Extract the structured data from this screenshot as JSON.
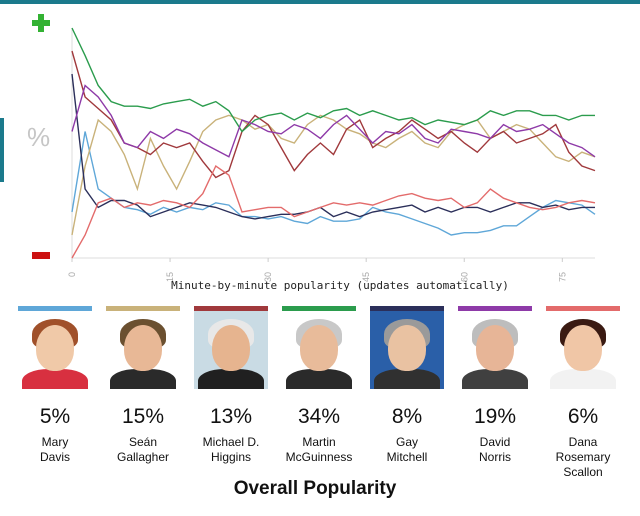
{
  "chart_data": {
    "type": "line",
    "xlabel": "Minute-by-minute popularity (updates automatically)",
    "ylabel": "%",
    "x_ticks": [
      0,
      15,
      30,
      45,
      60,
      75
    ],
    "xlim": [
      0,
      80
    ],
    "ylim": [
      0,
      100
    ],
    "grid": false,
    "series": [
      {
        "name": "Mary Davis",
        "color": "#5fa7d8",
        "x": [
          0,
          2,
          4,
          6,
          8,
          10,
          12,
          14,
          16,
          18,
          20,
          22,
          24,
          26,
          28,
          30,
          32,
          34,
          36,
          38,
          40,
          42,
          44,
          46,
          48,
          50,
          52,
          54,
          56,
          58,
          60,
          62,
          64,
          66,
          68,
          70,
          72,
          74,
          76,
          78,
          80
        ],
        "y": [
          20,
          55,
          30,
          26,
          22,
          21,
          19,
          22,
          20,
          22,
          21,
          24,
          23,
          18,
          18,
          17,
          18,
          16,
          15,
          18,
          16,
          16,
          17,
          22,
          20,
          19,
          17,
          15,
          13,
          10,
          11,
          11,
          12,
          14,
          14,
          18,
          22,
          25,
          24,
          23,
          19
        ]
      },
      {
        "name": "Seán Gallagher",
        "color": "#c9b27a",
        "x": [
          0,
          2,
          4,
          6,
          8,
          10,
          12,
          14,
          16,
          18,
          20,
          22,
          24,
          26,
          28,
          30,
          32,
          34,
          36,
          38,
          40,
          42,
          44,
          46,
          48,
          50,
          52,
          54,
          56,
          58,
          60,
          62,
          64,
          66,
          68,
          70,
          72,
          74,
          76,
          78,
          80
        ],
        "y": [
          10,
          40,
          60,
          55,
          45,
          30,
          52,
          40,
          30,
          42,
          55,
          60,
          62,
          60,
          56,
          58,
          52,
          50,
          58,
          62,
          60,
          56,
          54,
          50,
          48,
          52,
          55,
          50,
          48,
          55,
          58,
          60,
          52,
          55,
          58,
          56,
          50,
          44,
          42,
          46,
          44
        ]
      },
      {
        "name": "Michael D. Higgins",
        "color": "#a0393c",
        "x": [
          0,
          2,
          4,
          6,
          8,
          10,
          12,
          14,
          16,
          18,
          20,
          22,
          24,
          26,
          28,
          30,
          32,
          34,
          36,
          38,
          40,
          42,
          44,
          46,
          48,
          50,
          52,
          54,
          56,
          58,
          60,
          62,
          64,
          66,
          68,
          70,
          72,
          74,
          76,
          78,
          80
        ],
        "y": [
          90,
          70,
          65,
          60,
          50,
          48,
          45,
          50,
          48,
          50,
          42,
          35,
          38,
          55,
          62,
          58,
          48,
          38,
          45,
          50,
          45,
          56,
          60,
          48,
          52,
          55,
          60,
          56,
          52,
          55,
          50,
          46,
          52,
          55,
          50,
          52,
          54,
          58,
          46,
          40,
          38
        ]
      },
      {
        "name": "Martin McGuinness",
        "color": "#2b9c4d",
        "x": [
          0,
          2,
          4,
          6,
          8,
          10,
          12,
          14,
          16,
          18,
          20,
          22,
          24,
          26,
          28,
          30,
          32,
          34,
          36,
          38,
          40,
          42,
          44,
          46,
          48,
          50,
          52,
          54,
          56,
          58,
          60,
          62,
          64,
          66,
          68,
          70,
          72,
          74,
          76,
          78,
          80
        ],
        "y": [
          100,
          88,
          75,
          68,
          66,
          66,
          65,
          67,
          68,
          69,
          66,
          68,
          64,
          55,
          60,
          62,
          63,
          60,
          63,
          61,
          64,
          65,
          62,
          64,
          62,
          60,
          61,
          58,
          60,
          59,
          58,
          60,
          64,
          62,
          64,
          64,
          62,
          62,
          60,
          62,
          62
        ]
      },
      {
        "name": "Gay Mitchell",
        "color": "#2b2f5a",
        "x": [
          0,
          2,
          4,
          6,
          8,
          10,
          12,
          14,
          16,
          18,
          20,
          22,
          24,
          26,
          28,
          30,
          32,
          34,
          36,
          38,
          40,
          42,
          44,
          46,
          48,
          50,
          52,
          54,
          56,
          58,
          60,
          62,
          64,
          66,
          68,
          70,
          72,
          74,
          76,
          78,
          80
        ],
        "y": [
          80,
          30,
          22,
          25,
          25,
          23,
          18,
          20,
          22,
          24,
          23,
          22,
          20,
          18,
          17,
          18,
          19,
          19,
          20,
          22,
          18,
          20,
          18,
          20,
          21,
          22,
          23,
          20,
          22,
          20,
          22,
          22,
          20,
          22,
          24,
          24,
          22,
          23,
          21,
          22,
          22
        ]
      },
      {
        "name": "David Norris",
        "color": "#8e3aa8",
        "x": [
          0,
          2,
          4,
          6,
          8,
          10,
          12,
          14,
          16,
          18,
          20,
          22,
          24,
          26,
          28,
          30,
          32,
          34,
          36,
          38,
          40,
          42,
          44,
          46,
          48,
          50,
          52,
          54,
          56,
          58,
          60,
          62,
          64,
          66,
          68,
          70,
          72,
          74,
          76,
          78,
          80
        ],
        "y": [
          55,
          75,
          70,
          62,
          50,
          48,
          55,
          52,
          56,
          54,
          50,
          47,
          44,
          60,
          58,
          55,
          54,
          58,
          56,
          52,
          58,
          62,
          56,
          50,
          55,
          54,
          58,
          52,
          50,
          56,
          55,
          54,
          52,
          58,
          55,
          56,
          58,
          54,
          50,
          48,
          44
        ]
      },
      {
        "name": "Dana Rosemary Scallon",
        "color": "#e36b6b",
        "x": [
          0,
          2,
          4,
          6,
          8,
          10,
          12,
          14,
          16,
          18,
          20,
          22,
          24,
          26,
          28,
          30,
          32,
          34,
          36,
          38,
          40,
          42,
          44,
          46,
          48,
          50,
          52,
          54,
          56,
          58,
          60,
          62,
          64,
          66,
          68,
          70,
          72,
          74,
          76,
          78,
          80
        ],
        "y": [
          0,
          10,
          24,
          26,
          22,
          24,
          23,
          25,
          24,
          22,
          28,
          40,
          36,
          20,
          21,
          22,
          22,
          18,
          20,
          22,
          24,
          23,
          24,
          23,
          25,
          27,
          28,
          26,
          25,
          26,
          22,
          24,
          30,
          26,
          24,
          22,
          21,
          22,
          24,
          25,
          24
        ]
      }
    ]
  },
  "labels": {
    "pct_sign": "%",
    "overall": "Overall Popularity"
  },
  "candidates": [
    {
      "pct": "5%",
      "name_lines": [
        "Mary",
        "Davis"
      ],
      "color": "#5fa7d8"
    },
    {
      "pct": "15%",
      "name_lines": [
        "Seán",
        "Gallagher"
      ],
      "color": "#c9b27a"
    },
    {
      "pct": "13%",
      "name_lines": [
        "Michael D.",
        "Higgins"
      ],
      "color": "#a0393c"
    },
    {
      "pct": "34%",
      "name_lines": [
        "Martin",
        "McGuinness"
      ],
      "color": "#2b9c4d"
    },
    {
      "pct": "8%",
      "name_lines": [
        "Gay",
        "Mitchell"
      ],
      "color": "#2b2f5a"
    },
    {
      "pct": "19%",
      "name_lines": [
        "David",
        "Norris"
      ],
      "color": "#8e3aa8"
    },
    {
      "pct": "6%",
      "name_lines": [
        "Dana",
        "Rosemary",
        "Scallon"
      ],
      "color": "#e36b6b"
    }
  ]
}
